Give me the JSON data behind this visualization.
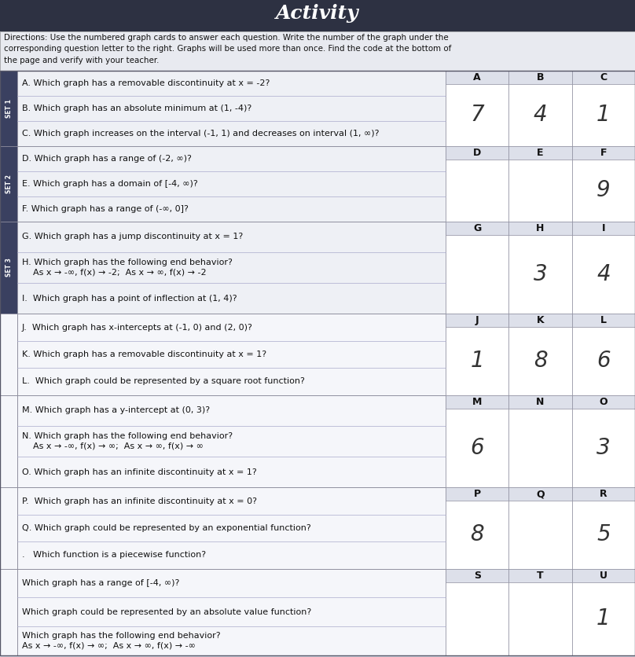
{
  "bg_color": "#d8dce8",
  "header_bg": "#2d3142",
  "dir_bg": "#e8eaf0",
  "set_label_bg": "#3a4060",
  "set_label_fg": "#ffffff",
  "question_bg_light": "#eef0f5",
  "question_bg_white": "#f5f6fa",
  "answer_area_bg": "#f0f1f5",
  "answer_hdr_bg": "#dde0ea",
  "answer_cell_bg": "#ffffff",
  "border_color": "#888899",
  "text_color": "#111111",
  "answer_text_color": "#444444",
  "directions_text": "Directions: Use the numbered graph cards to answer each question. Write the number of the graph under the\ncorresponding question letter to the right. Graphs will be used more than once. Find the code at the bottom of\nthe page and verify with your teacher.",
  "sets": [
    {
      "set_label": "SET 1",
      "questions": [
        "A. Which graph has a removable discontinuity at x = -2?",
        "B. Which graph has an absolute minimum at (1, -4)?",
        "C. Which graph increases on the interval (-1, 1) and decreases on interval (1, ∞)?"
      ],
      "answer_labels": [
        "A",
        "B",
        "C"
      ],
      "answers": [
        "7",
        "4",
        "1"
      ]
    },
    {
      "set_label": "SET 2",
      "questions": [
        "D. Which graph has a range of (-2, ∞)?",
        "E. Which graph has a domain of [-4, ∞)?",
        "F. Which graph has a range of (-∞, 0]?"
      ],
      "answer_labels": [
        "D",
        "E",
        "F"
      ],
      "answers": [
        "",
        "",
        "9"
      ]
    },
    {
      "set_label": "SET 3",
      "questions": [
        "G. Which graph has a jump discontinuity at x = 1?",
        "H. Which graph has the following end behavior?\n    As x → -∞, f(x) → -2;  As x → ∞, f(x) → -2",
        "I.  Which graph has a point of inflection at (1, 4)?"
      ],
      "answer_labels": [
        "G",
        "H",
        "I"
      ],
      "answers": [
        "",
        "3",
        "4"
      ]
    },
    {
      "set_label": "",
      "questions": [
        "J.  Which graph has x-intercepts at (-1, 0) and (2, 0)?",
        "K. Which graph has a removable discontinuity at x = 1?",
        "L.  Which graph could be represented by a square root function?"
      ],
      "answer_labels": [
        "J",
        "K",
        "L"
      ],
      "answers": [
        "1",
        "8",
        "6"
      ]
    },
    {
      "set_label": "",
      "questions": [
        "M. Which graph has a y-intercept at (0, 3)?",
        "N. Which graph has the following end behavior?\n    As x → -∞, f(x) → ∞;  As x → ∞, f(x) → ∞",
        "O. Which graph has an infinite discontinuity at x = 1?"
      ],
      "answer_labels": [
        "M",
        "N",
        "O"
      ],
      "answers": [
        "6",
        "",
        "3"
      ]
    },
    {
      "set_label": "",
      "questions": [
        "P.  Which graph has an infinite discontinuity at x = 0?",
        "Q. Which graph could be represented by an exponential function?",
        ".   Which function is a piecewise function?"
      ],
      "answer_labels": [
        "P",
        "Q",
        "R"
      ],
      "answers": [
        "8",
        "",
        "5"
      ]
    },
    {
      "set_label": "",
      "questions": [
        "Which graph has a range of [-4, ∞)?",
        "Which graph could be represented by an absolute value function?",
        "Which graph has the following end behavior?\nAs x → -∞, f(x) → ∞;  As x → ∞, f(x) → -∞"
      ],
      "answer_labels": [
        "S",
        "T",
        "U"
      ],
      "answers": [
        "",
        "",
        "1"
      ]
    }
  ]
}
